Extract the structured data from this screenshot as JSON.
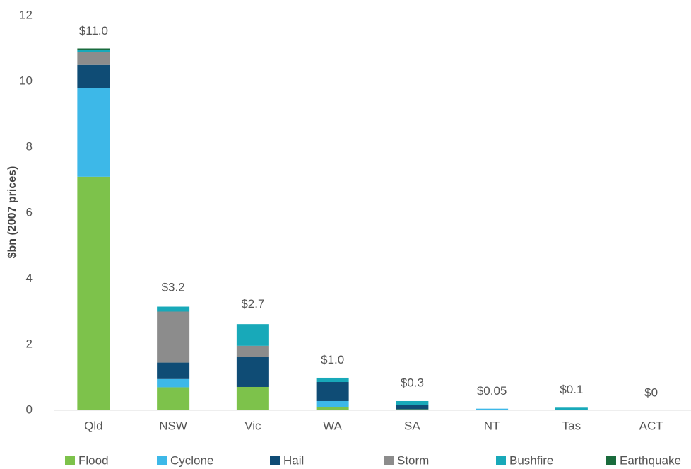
{
  "chart_data": {
    "type": "stacked_bar",
    "y_label": "$bn (2007 prices)",
    "categories": [
      "Qld",
      "NSW",
      "Vic",
      "WA",
      "SA",
      "NT",
      "Tas",
      "ACT"
    ],
    "series": [
      {
        "name": "Flood",
        "color": "#7dc24b",
        "values": [
          7.1,
          0.7,
          0.71,
          0.1,
          0.03,
          0,
          0,
          0
        ]
      },
      {
        "name": "Cyclone",
        "color": "#3db8e8",
        "values": [
          2.7,
          0.25,
          0,
          0.18,
          0,
          0.05,
          0,
          0
        ]
      },
      {
        "name": "Hail",
        "color": "#0f4c75",
        "values": [
          0.7,
          0.5,
          0.92,
          0.58,
          0.13,
          0,
          0,
          0
        ]
      },
      {
        "name": "Storm",
        "color": "#8c8c8c",
        "values": [
          0.4,
          1.55,
          0.33,
          0,
          0,
          0,
          0,
          0
        ]
      },
      {
        "name": "Bushfire",
        "color": "#18a9b9",
        "values": [
          0.05,
          0.15,
          0.66,
          0.13,
          0.12,
          0,
          0.08,
          0
        ]
      },
      {
        "name": "Earthquake",
        "color": "#1a6b3c",
        "values": [
          0.05,
          0,
          0,
          0,
          0,
          0,
          0,
          0
        ]
      }
    ],
    "totals": [
      11.0,
      3.2,
      2.7,
      1.0,
      0.3,
      0.05,
      0.1,
      0
    ],
    "total_labels": [
      "$11.0",
      "$3.2",
      "$2.7",
      "$1.0",
      "$0.3",
      "$0.05",
      "$0.1",
      "$0"
    ],
    "ylim": [
      0,
      12
    ],
    "yticks": [
      0,
      2,
      4,
      6,
      8,
      10,
      12
    ]
  }
}
